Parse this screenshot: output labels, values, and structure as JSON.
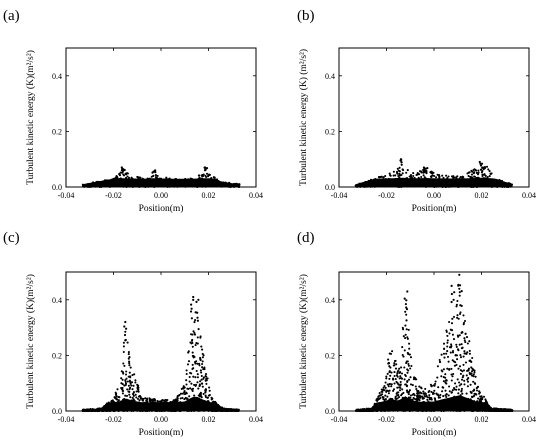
{
  "figure": {
    "panels": [
      {
        "label": "(a)",
        "ylabel": "Turbulent kinetic energy (K)(m²/s²)",
        "xlabel": "Position(m)"
      },
      {
        "label": "(b)",
        "ylabel": "Turbulent kinetic energy (K) (m²/s²)",
        "xlabel": "Position(m)"
      },
      {
        "label": "(c)",
        "ylabel": "Turbulent kinetic energy (K)(m²/s²)",
        "xlabel": "Position(m)"
      },
      {
        "label": "(d)",
        "ylabel": "Turbulent kinetic energy (K)(m²/s²)",
        "xlabel": "Position(m)"
      }
    ],
    "xticks": [
      "-0.04",
      "-0.02",
      "0.00",
      "0.02",
      "0.04"
    ],
    "yticks": [
      "0.0",
      "0.2",
      "0.4"
    ],
    "marker_color": "#000000"
  },
  "chart_data": [
    {
      "type": "scatter",
      "panel": "(a)",
      "xlabel": "Position(m)",
      "ylabel": "Turbulent kinetic energy (K)(m²/s²)",
      "xlim": [
        -0.04,
        0.04
      ],
      "ylim": [
        0,
        0.5
      ],
      "grid": false,
      "legend": "none",
      "x_extent": [
        -0.033,
        0.033
      ],
      "envelope": {
        "x": [
          -0.033,
          -0.02,
          -0.016,
          -0.012,
          -0.006,
          -0.003,
          0.0,
          0.004,
          0.01,
          0.015,
          0.019,
          0.025,
          0.033
        ],
        "y": [
          0.01,
          0.03,
          0.06,
          0.04,
          0.03,
          0.055,
          0.04,
          0.03,
          0.03,
          0.035,
          0.06,
          0.02,
          0.01
        ]
      },
      "peaks": [
        {
          "x": -0.016,
          "y": 0.07
        },
        {
          "x": -0.003,
          "y": 0.06
        },
        {
          "x": 0.019,
          "y": 0.07
        }
      ]
    },
    {
      "type": "scatter",
      "panel": "(b)",
      "xlabel": "Position(m)",
      "ylabel": "Turbulent kinetic energy (K) (m²/s²)",
      "xlim": [
        -0.04,
        0.04
      ],
      "ylim": [
        0,
        0.5
      ],
      "grid": false,
      "legend": "none",
      "x_extent": [
        -0.033,
        0.033
      ],
      "envelope": {
        "x": [
          -0.033,
          -0.025,
          -0.016,
          -0.013,
          -0.01,
          -0.003,
          0.0,
          0.006,
          0.012,
          0.018,
          0.021,
          0.026,
          0.033
        ],
        "y": [
          0.01,
          0.03,
          0.06,
          0.09,
          0.05,
          0.07,
          0.05,
          0.04,
          0.04,
          0.07,
          0.09,
          0.03,
          0.01
        ]
      },
      "peaks": [
        {
          "x": -0.014,
          "y": 0.1
        },
        {
          "x": -0.004,
          "y": 0.07
        },
        {
          "x": 0.02,
          "y": 0.09
        }
      ]
    },
    {
      "type": "scatter",
      "panel": "(c)",
      "xlabel": "Position(m)",
      "ylabel": "Turbulent kinetic energy (K)(m²/s²)",
      "xlim": [
        -0.04,
        0.04
      ],
      "ylim": [
        0,
        0.5
      ],
      "grid": false,
      "legend": "none",
      "x_extent": [
        -0.033,
        0.033
      ],
      "envelope": {
        "x": [
          -0.033,
          -0.025,
          -0.02,
          -0.017,
          -0.015,
          -0.012,
          -0.008,
          0.0,
          0.006,
          0.01,
          0.013,
          0.015,
          0.017,
          0.021,
          0.026,
          0.033
        ],
        "y": [
          0.005,
          0.01,
          0.05,
          0.12,
          0.3,
          0.15,
          0.05,
          0.04,
          0.04,
          0.1,
          0.35,
          0.4,
          0.25,
          0.05,
          0.01,
          0.005
        ]
      },
      "peaks": [
        {
          "x": -0.015,
          "y": 0.32
        },
        {
          "x": 0.013,
          "y": 0.41
        },
        {
          "x": 0.015,
          "y": 0.4
        }
      ]
    },
    {
      "type": "scatter",
      "panel": "(d)",
      "xlabel": "Position(m)",
      "ylabel": "Turbulent kinetic energy (K)(m²/s²)",
      "xlim": [
        -0.04,
        0.04
      ],
      "ylim": [
        0,
        0.5
      ],
      "grid": false,
      "legend": "none",
      "x_extent": [
        -0.033,
        0.033
      ],
      "envelope": {
        "x": [
          -0.033,
          -0.026,
          -0.022,
          -0.018,
          -0.015,
          -0.012,
          -0.009,
          -0.005,
          0.0,
          0.004,
          0.008,
          0.011,
          0.014,
          0.018,
          0.024,
          0.033
        ],
        "y": [
          0.005,
          0.01,
          0.08,
          0.25,
          0.15,
          0.42,
          0.15,
          0.08,
          0.1,
          0.25,
          0.38,
          0.48,
          0.3,
          0.1,
          0.01,
          0.005
        ]
      },
      "peaks": [
        {
          "x": -0.012,
          "y": 0.43
        },
        {
          "x": 0.008,
          "y": 0.45
        },
        {
          "x": 0.011,
          "y": 0.49
        }
      ]
    }
  ]
}
